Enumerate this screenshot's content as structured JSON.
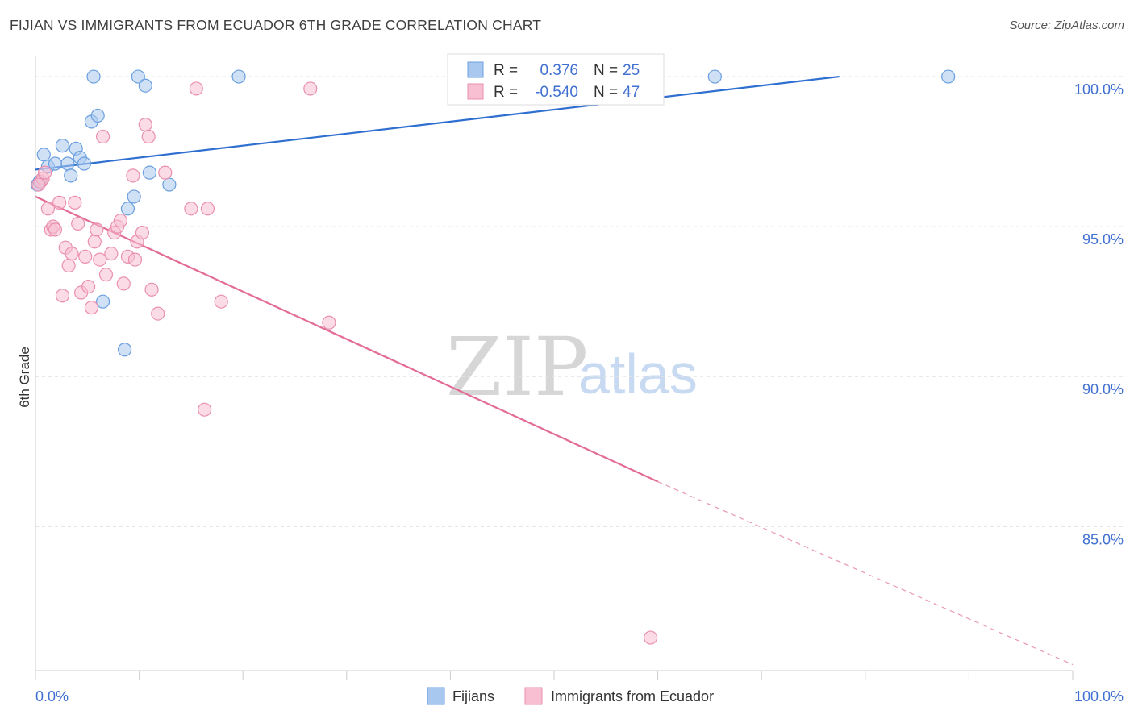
{
  "header": {
    "title": "FIJIAN VS IMMIGRANTS FROM ECUADOR 6TH GRADE CORRELATION CHART",
    "source": "Source: ZipAtlas.com"
  },
  "watermark": {
    "zip": "ZIP",
    "atlas": "atlas"
  },
  "legend_top": [
    {
      "r_label": "R =",
      "r_value": "0.376",
      "n_label": "N =",
      "n_value": "25"
    },
    {
      "r_label": "R =",
      "r_value": "-0.540",
      "n_label": "N =",
      "n_value": "47"
    }
  ],
  "legend_bottom": [
    {
      "label": "Fijians"
    },
    {
      "label": "Immigrants from Ecuador"
    }
  ],
  "colors": {
    "blue_fill": "#a9c8ef",
    "blue_stroke": "#6a9fdf",
    "blue_line": "#2f6fd0",
    "pink_fill": "#f7bfd1",
    "pink_stroke": "#ea8fae",
    "pink_line": "#e36b97",
    "axis_text": "#3f6fd0",
    "grid": "#e3e3e3"
  },
  "chart_data": {
    "type": "scatter",
    "title": "FIJIAN VS IMMIGRANTS FROM ECUADOR 6TH GRADE CORRELATION CHART",
    "xlabel": "",
    "ylabel": "6th Grade",
    "xlim": [
      0,
      100
    ],
    "ylim": [
      80.2,
      100.7
    ],
    "x_tick_labels": [
      "0.0%",
      "100.0%"
    ],
    "y_ticks": [
      85,
      90,
      95,
      100
    ],
    "y_tick_labels": [
      "85.0%",
      "90.0%",
      "95.0%",
      "100.0%"
    ],
    "series": [
      {
        "name": "Fijians",
        "r": 0.376,
        "n": 25,
        "points": [
          [
            0.2,
            96.4
          ],
          [
            0.8,
            97.4
          ],
          [
            1.2,
            97.0
          ],
          [
            1.9,
            97.1
          ],
          [
            2.6,
            97.7
          ],
          [
            3.1,
            97.1
          ],
          [
            3.4,
            96.7
          ],
          [
            3.9,
            97.6
          ],
          [
            4.3,
            97.3
          ],
          [
            4.7,
            97.1
          ],
          [
            5.4,
            98.5
          ],
          [
            5.6,
            100.0
          ],
          [
            6.0,
            98.7
          ],
          [
            6.5,
            92.5
          ],
          [
            8.6,
            90.9
          ],
          [
            8.9,
            95.6
          ],
          [
            9.5,
            96.0
          ],
          [
            9.9,
            100.0
          ],
          [
            10.6,
            99.7
          ],
          [
            11.0,
            96.8
          ],
          [
            12.9,
            96.4
          ],
          [
            19.6,
            100.0
          ],
          [
            65.5,
            100.0
          ],
          [
            88.0,
            100.0
          ],
          [
            0.4,
            96.5
          ]
        ],
        "trend": {
          "x1": 0,
          "y1": 96.9,
          "x2": 77.5,
          "y2": 100.0
        }
      },
      {
        "name": "Immigrants from Ecuador",
        "r": -0.54,
        "n": 47,
        "points": [
          [
            0.5,
            96.5
          ],
          [
            0.7,
            96.6
          ],
          [
            0.9,
            96.8
          ],
          [
            1.2,
            95.6
          ],
          [
            1.5,
            94.9
          ],
          [
            1.7,
            95.0
          ],
          [
            1.9,
            94.9
          ],
          [
            2.3,
            95.8
          ],
          [
            2.6,
            92.7
          ],
          [
            2.9,
            94.3
          ],
          [
            3.2,
            93.7
          ],
          [
            3.5,
            94.1
          ],
          [
            3.8,
            95.8
          ],
          [
            4.1,
            95.1
          ],
          [
            4.4,
            92.8
          ],
          [
            4.8,
            94.0
          ],
          [
            5.1,
            93.0
          ],
          [
            5.4,
            92.3
          ],
          [
            5.7,
            94.5
          ],
          [
            5.9,
            94.9
          ],
          [
            6.2,
            93.9
          ],
          [
            6.5,
            98.0
          ],
          [
            6.8,
            93.4
          ],
          [
            7.3,
            94.1
          ],
          [
            7.6,
            94.8
          ],
          [
            7.9,
            95.0
          ],
          [
            8.2,
            95.2
          ],
          [
            8.5,
            93.1
          ],
          [
            8.9,
            94.0
          ],
          [
            9.4,
            96.7
          ],
          [
            9.6,
            93.9
          ],
          [
            9.8,
            94.5
          ],
          [
            10.3,
            94.8
          ],
          [
            10.6,
            98.4
          ],
          [
            10.9,
            98.0
          ],
          [
            11.2,
            92.9
          ],
          [
            11.8,
            92.1
          ],
          [
            12.5,
            96.8
          ],
          [
            15.0,
            95.6
          ],
          [
            15.5,
            99.6
          ],
          [
            16.3,
            88.9
          ],
          [
            16.6,
            95.6
          ],
          [
            17.9,
            92.5
          ],
          [
            26.5,
            99.6
          ],
          [
            28.3,
            91.8
          ],
          [
            59.3,
            81.3
          ],
          [
            0.3,
            96.4
          ]
        ],
        "trend": {
          "x1": 0,
          "y1": 96.0,
          "x2": 60.0,
          "y2": 86.5
        },
        "trend_dashed": {
          "x1": 60.0,
          "y1": 86.5,
          "x2": 100,
          "y2": 80.4
        }
      }
    ]
  }
}
